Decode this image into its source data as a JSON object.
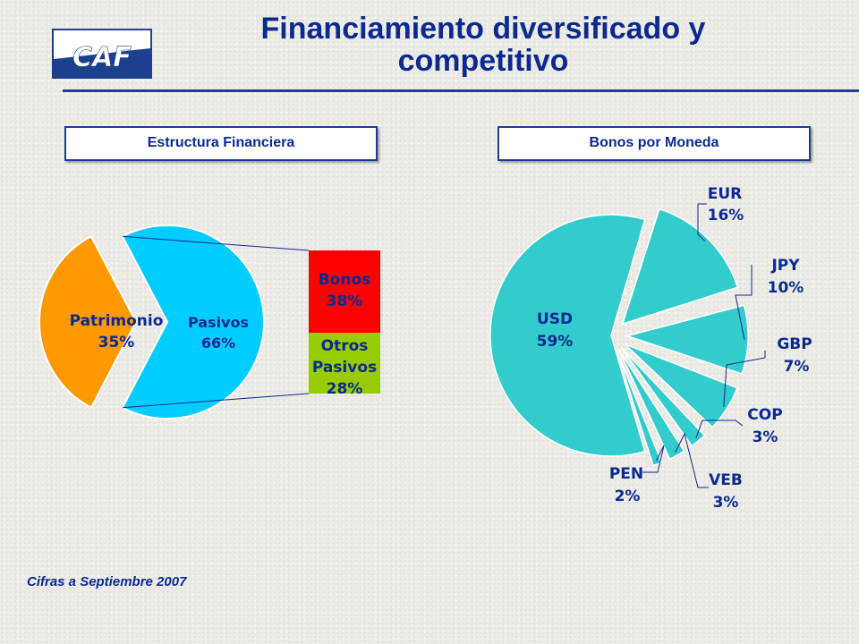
{
  "page": {
    "title_line1": "Financiamiento diversificado y",
    "title_line2": "competitivo",
    "logo_text": "CAF",
    "footnote": "Cifras a Septiembre  2007"
  },
  "panels": {
    "left_title": "Estructura Financiera",
    "right_title": "Bonos por Moneda"
  },
  "colors": {
    "brand_blue": "#0a2a90",
    "pasivos": "#00ccff",
    "patrimonio": "#ff9900",
    "bonos": "#ff0000",
    "otros_pasivos": "#99cc00",
    "currency_slices": "#33cccc"
  },
  "chart_data": [
    {
      "type": "pie",
      "title": "Estructura Financiera",
      "slices": [
        {
          "label": "Pasivos",
          "value_label": "66%",
          "value": 66,
          "color": "#00ccff"
        },
        {
          "label": "Patrimonio",
          "value_label": "35%",
          "value": 35,
          "color": "#ff9900"
        }
      ],
      "breakdown_of": "Pasivos",
      "breakdown": [
        {
          "label": "Bonos",
          "value_label": "38%",
          "value": 38,
          "color": "#ff0000"
        },
        {
          "label": "Otros Pasivos",
          "label_line1": "Otros",
          "label_line2": "Pasivos",
          "value_label": "28%",
          "value": 28,
          "color": "#99cc00"
        }
      ]
    },
    {
      "type": "pie",
      "title": "Bonos por Moneda",
      "exploded": true,
      "slices": [
        {
          "label": "USD",
          "value_label": "59%",
          "value": 59
        },
        {
          "label": "EUR",
          "value_label": "16%",
          "value": 16
        },
        {
          "label": "JPY",
          "value_label": "10%",
          "value": 10
        },
        {
          "label": "GBP",
          "value_label": "7%",
          "value": 7
        },
        {
          "label": "COP",
          "value_label": "3%",
          "value": 3
        },
        {
          "label": "VEB",
          "value_label": "3%",
          "value": 3
        },
        {
          "label": "PEN",
          "value_label": "2%",
          "value": 2
        }
      ]
    }
  ]
}
